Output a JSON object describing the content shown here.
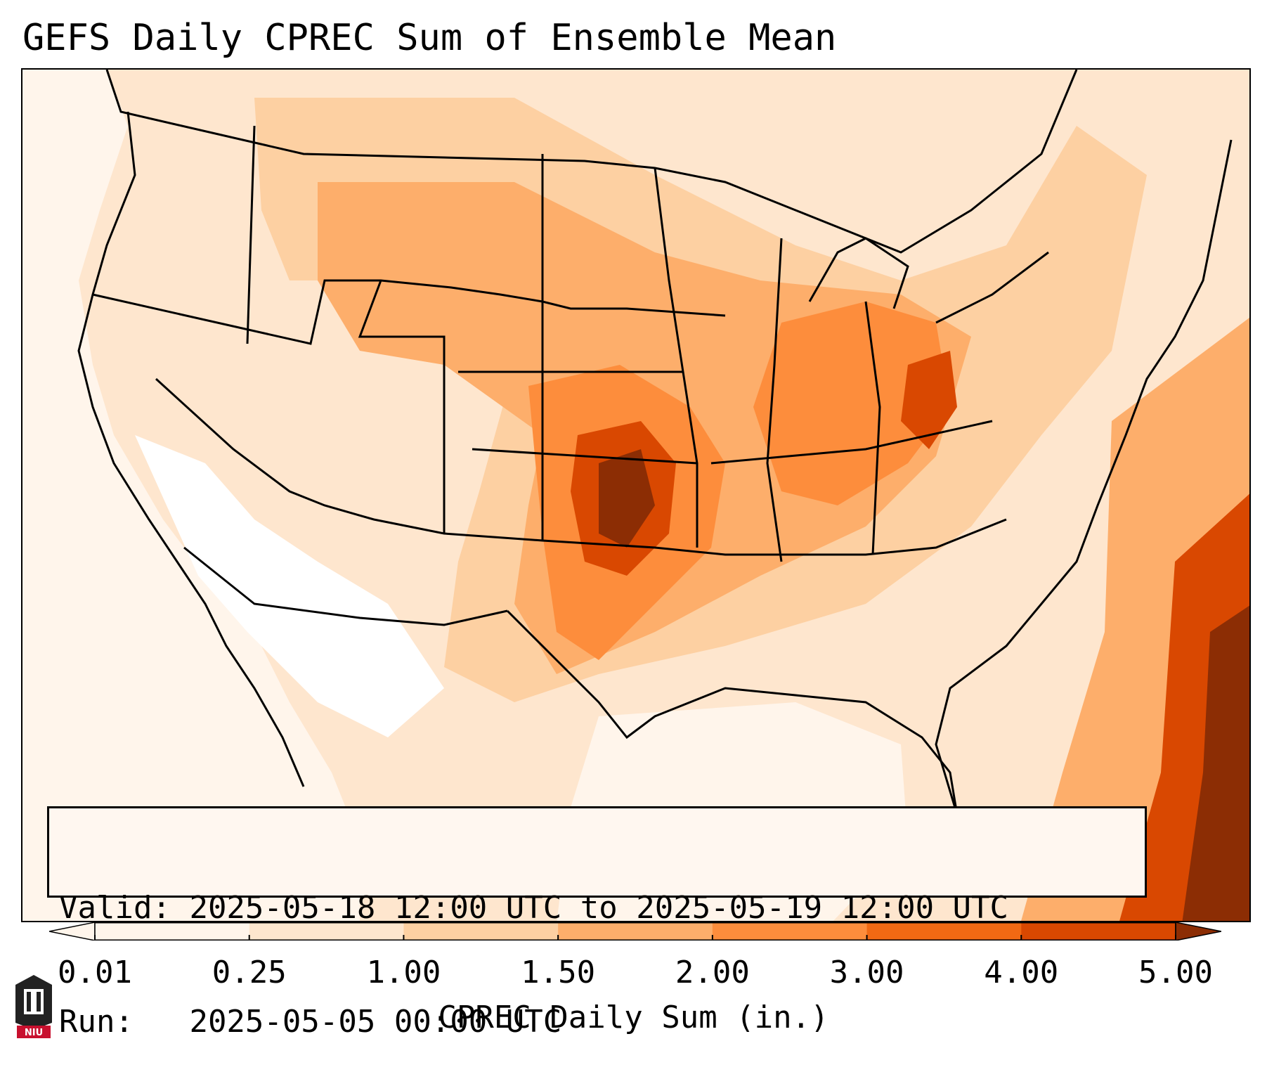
{
  "title": "GEFS Daily CPREC Sum of Ensemble Mean",
  "info": {
    "valid_label": "Valid:",
    "valid_value": "2025-05-18 12:00 UTC to 2025-05-19 12:00 UTC",
    "run_label": "Run:",
    "run_value": "2025-05-05 00:00 UTC"
  },
  "colorbar": {
    "label": "CPREC Daily Sum (in.)",
    "ticks": [
      "0.01",
      "0.25",
      "1.00",
      "1.50",
      "2.00",
      "3.00",
      "4.00",
      "5.00"
    ],
    "colors": [
      "#fff5eb",
      "#fee6ce",
      "#fdd0a2",
      "#fdae6b",
      "#fd8d3c",
      "#f16913",
      "#d94801",
      "#8c2d04"
    ],
    "extend": "both"
  },
  "map": {
    "projection": "lambert-conformal",
    "region": "CONUS",
    "colormap": "Oranges"
  },
  "logo": {
    "text": "NIU"
  }
}
